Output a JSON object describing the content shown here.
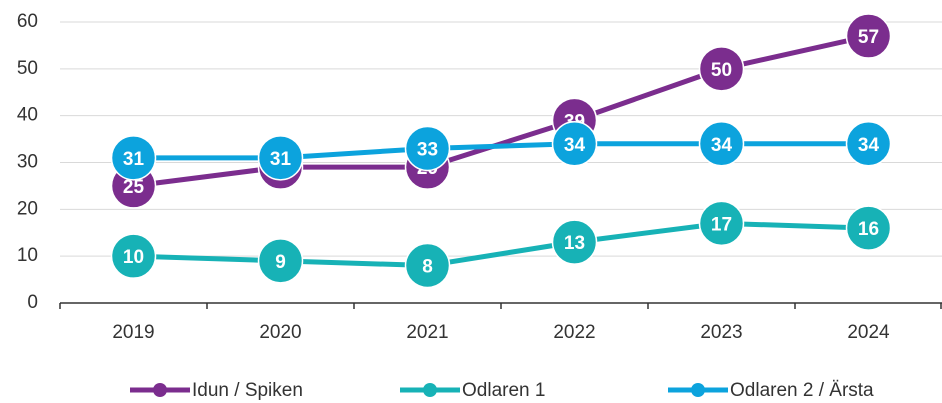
{
  "chart_data": {
    "type": "line",
    "categories": [
      "2019",
      "2020",
      "2021",
      "2022",
      "2023",
      "2024"
    ],
    "series": [
      {
        "name": "Idun / Spiken",
        "color": "#7b2d8e",
        "values": [
          25,
          29,
          29,
          39,
          50,
          57
        ]
      },
      {
        "name": "Odlaren 1",
        "color": "#17b2b6",
        "values": [
          10,
          9,
          8,
          13,
          17,
          16
        ]
      },
      {
        "name": "Odlaren 2 / Ärsta",
        "color": "#0ca3dd",
        "values": [
          31,
          31,
          33,
          34,
          34,
          34
        ]
      }
    ],
    "ylim": [
      0,
      60
    ],
    "yticks": [
      0,
      10,
      20,
      30,
      40,
      50,
      60
    ],
    "grid": true,
    "legend": "bottom"
  }
}
